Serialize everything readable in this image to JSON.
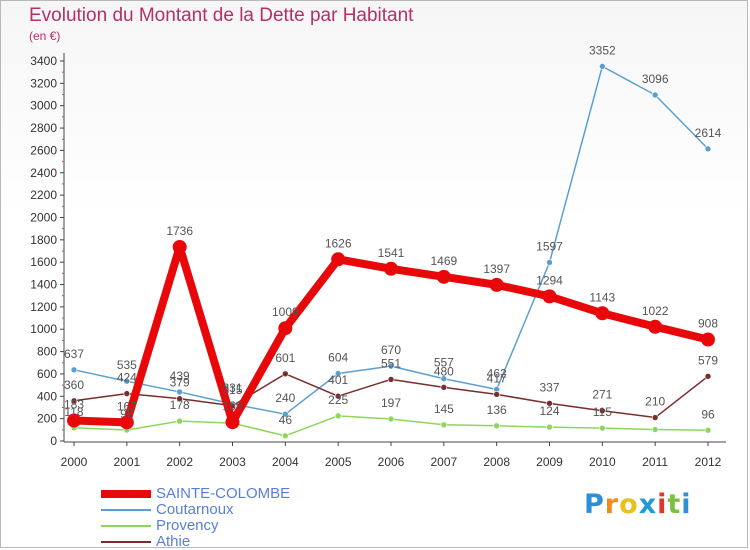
{
  "title": "Evolution du Montant de la Dette par Habitant",
  "subtitle": "(en €)",
  "logo_text": "Proxiti",
  "colors": {
    "title": "#b53063",
    "axis": "#333333",
    "sainte_colombe": "#e8080a",
    "coutarnoux": "#5b9fd0",
    "provency": "#8ed65a",
    "athie": "#7a2d2d"
  },
  "chart_data": {
    "type": "line",
    "title": "Evolution du Montant de la Dette par Habitant",
    "subtitle": "(en €)",
    "xlabel": "",
    "ylabel": "",
    "x": [
      "2000",
      "2001",
      "2002",
      "2003",
      "2004",
      "2005",
      "2006",
      "2007",
      "2008",
      "2009",
      "2010",
      "2011",
      "2012"
    ],
    "ylim": [
      0,
      3400
    ],
    "yticks": [
      0,
      200,
      400,
      600,
      800,
      1000,
      1200,
      1400,
      1600,
      1800,
      2000,
      2200,
      2400,
      2600,
      2800,
      3000,
      3200,
      3400
    ],
    "grid": false,
    "legend_position": "bottom-left",
    "series": [
      {
        "name": "SAINTE-COLOMBE",
        "color": "#e8080a",
        "values": [
          183,
          167,
          1736,
          168,
          1009,
          1626,
          1541,
          1469,
          1397,
          1294,
          1143,
          1022,
          908
        ],
        "labels": [
          "183",
          "167",
          "1736",
          "168",
          "1009",
          "1626",
          "1541",
          "1469",
          "1397",
          "1294",
          "1143",
          "1022",
          "908"
        ]
      },
      {
        "name": "Coutarnoux",
        "color": "#5b9fd0",
        "values": [
          637,
          535,
          439,
          331,
          240,
          604,
          670,
          557,
          462,
          1597,
          3352,
          3096,
          2614
        ],
        "labels": [
          "637",
          "535",
          "439",
          "331",
          "240",
          "604",
          "670",
          "557",
          "462",
          "1597",
          "3352",
          "3096",
          "2614"
        ]
      },
      {
        "name": "Provency",
        "color": "#8ed65a",
        "values": [
          118,
          98,
          178,
          160,
          46,
          225,
          197,
          145,
          136,
          124,
          115,
          103,
          96
        ],
        "labels": [
          "118",
          "98",
          "178",
          "",
          "46",
          "225",
          "197",
          "145",
          "136",
          "124",
          "115",
          "",
          "96"
        ]
      },
      {
        "name": "Athie",
        "color": "#7a2d2d",
        "values": [
          360,
          424,
          379,
          315,
          601,
          401,
          551,
          480,
          417,
          337,
          271,
          210,
          579
        ],
        "labels": [
          "360",
          "424",
          "379",
          "315",
          "601",
          "401",
          "551",
          "480",
          "417",
          "337",
          "271",
          "210",
          "579"
        ]
      }
    ]
  }
}
